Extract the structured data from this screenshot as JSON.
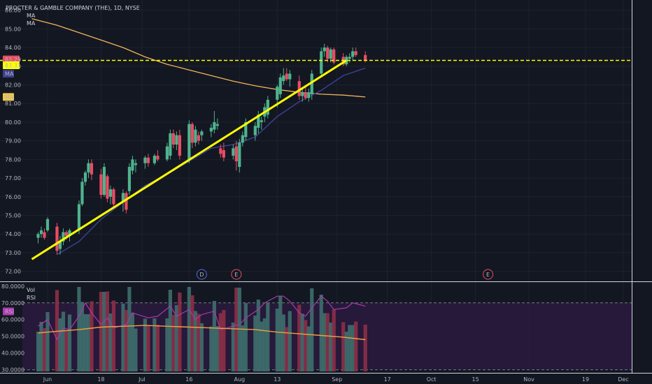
{
  "header": {
    "title": "PROCTER & GAMBLE COMPANY (THE), 1D, NYSE",
    "ma_label_1": "MA",
    "ma_label_2": "MA"
  },
  "price_badges": {
    "last_price": "83.29",
    "last_price_color": "#e84d64",
    "level_price": "83.31",
    "level_color": "#ffff00",
    "ma_fast_tag": "MA",
    "ma_fast_color": "#3c3f8c",
    "ma_slow_tag": "MA",
    "ma_slow_color": "#f0c64a"
  },
  "events": [
    {
      "label": "D",
      "date": "Jul 20",
      "color": "#5b6bd6"
    },
    {
      "label": "E",
      "date": "Jul 31",
      "color": "#e84d64"
    },
    {
      "label": "E",
      "date": "Oct 19",
      "color": "#e84d64"
    }
  ],
  "lower_pane": {
    "vol_label": "Vol",
    "rsi_label": "RSI",
    "rsi_tag": "RSI",
    "rsi_color": "#b03ab0",
    "rsi_ma_color": "#f0a040",
    "overbought": 70,
    "oversold": 30
  },
  "chart_data": {
    "type": "candlestick",
    "title": "PROCTER & GAMBLE COMPANY (THE), 1D, NYSE",
    "x_tick_labels": [
      "Jun",
      "18",
      "Jul",
      "16",
      "Aug",
      "13",
      "Sep",
      "17",
      "Oct",
      "15",
      "Nov",
      "19",
      "Dec"
    ],
    "y_tick_labels": [
      "72.00",
      "73.00",
      "74.00",
      "75.00",
      "76.00",
      "77.00",
      "78.00",
      "79.00",
      "80.00",
      "81.00",
      "82.00",
      "83.00",
      "84.00",
      "85.00",
      "86.00"
    ],
    "ylim": [
      71.5,
      86.4
    ],
    "rsi_tick_labels": [
      "30.0000",
      "40.0000",
      "50.0000",
      "60.0000",
      "70.0000",
      "80.0000"
    ],
    "rsi_ylim": [
      29,
      82
    ],
    "horizontal_level": 83.31,
    "trendline": {
      "start": {
        "date": "May 27",
        "value": 72.65
      },
      "end": {
        "date": "Sep 4",
        "value": 83.31
      }
    },
    "candles": [
      {
        "date": "May 29",
        "o": 73.8,
        "h": 74.1,
        "l": 73.5,
        "c": 74.0
      },
      {
        "date": "May 30",
        "o": 74.0,
        "h": 74.4,
        "l": 73.8,
        "c": 74.2
      },
      {
        "date": "May 31",
        "o": 74.1,
        "h": 74.3,
        "l": 73.7,
        "c": 73.8
      },
      {
        "date": "Jun 1",
        "o": 74.2,
        "h": 74.9,
        "l": 74.1,
        "c": 74.8
      },
      {
        "date": "Jun 4",
        "o": 74.4,
        "h": 74.6,
        "l": 72.9,
        "c": 73.1
      },
      {
        "date": "Jun 5",
        "o": 73.2,
        "h": 73.9,
        "l": 72.9,
        "c": 73.6
      },
      {
        "date": "Jun 6",
        "o": 73.6,
        "h": 74.3,
        "l": 73.4,
        "c": 74.1
      },
      {
        "date": "Jun 7",
        "o": 74.1,
        "h": 74.2,
        "l": 73.7,
        "c": 73.9
      },
      {
        "date": "Jun 8",
        "o": 73.9,
        "h": 74.3,
        "l": 73.6,
        "c": 74.2
      },
      {
        "date": "Jun 11",
        "o": 74.2,
        "h": 75.8,
        "l": 74.0,
        "c": 75.6
      },
      {
        "date": "Jun 12",
        "o": 75.6,
        "h": 77.0,
        "l": 75.5,
        "c": 76.8
      },
      {
        "date": "Jun 13",
        "o": 76.8,
        "h": 77.4,
        "l": 76.6,
        "c": 77.3
      },
      {
        "date": "Jun 14",
        "o": 77.3,
        "h": 78.0,
        "l": 77.0,
        "c": 77.8
      },
      {
        "date": "Jun 15",
        "o": 77.8,
        "h": 78.0,
        "l": 76.9,
        "c": 77.2
      },
      {
        "date": "Jun 18",
        "o": 77.2,
        "h": 77.5,
        "l": 75.9,
        "c": 76.1
      },
      {
        "date": "Jun 19",
        "o": 76.1,
        "h": 77.8,
        "l": 76.0,
        "c": 77.6
      },
      {
        "date": "Jun 20",
        "o": 77.1,
        "h": 77.2,
        "l": 75.7,
        "c": 75.9
      },
      {
        "date": "Jun 21",
        "o": 76.0,
        "h": 76.6,
        "l": 75.6,
        "c": 76.4
      },
      {
        "date": "Jun 22",
        "o": 76.4,
        "h": 76.5,
        "l": 75.4,
        "c": 75.6
      },
      {
        "date": "Jun 25",
        "o": 75.7,
        "h": 76.4,
        "l": 75.2,
        "c": 76.2
      },
      {
        "date": "Jun 26",
        "o": 76.2,
        "h": 76.3,
        "l": 75.1,
        "c": 75.3
      },
      {
        "date": "Jun 27",
        "o": 76.3,
        "h": 77.8,
        "l": 76.1,
        "c": 77.6
      },
      {
        "date": "Jun 28",
        "o": 77.4,
        "h": 78.2,
        "l": 77.2,
        "c": 78.0
      },
      {
        "date": "Jun 29",
        "o": 77.7,
        "h": 78.0,
        "l": 77.3,
        "c": 77.8
      },
      {
        "date": "Jul 2",
        "o": 77.8,
        "h": 78.2,
        "l": 77.5,
        "c": 78.1
      },
      {
        "date": "Jul 3",
        "o": 78.1,
        "h": 78.3,
        "l": 77.6,
        "c": 77.8
      },
      {
        "date": "Jul 5",
        "o": 77.8,
        "h": 78.3,
        "l": 77.7,
        "c": 78.2
      },
      {
        "date": "Jul 6",
        "o": 78.2,
        "h": 78.5,
        "l": 77.9,
        "c": 78.0
      },
      {
        "date": "Jul 9",
        "o": 78.0,
        "h": 78.9,
        "l": 77.9,
        "c": 78.7
      },
      {
        "date": "Jul 10",
        "o": 78.2,
        "h": 79.6,
        "l": 78.0,
        "c": 79.4
      },
      {
        "date": "Jul 11",
        "o": 79.4,
        "h": 79.6,
        "l": 78.6,
        "c": 78.8
      },
      {
        "date": "Jul 12",
        "o": 78.8,
        "h": 79.5,
        "l": 78.5,
        "c": 79.3
      },
      {
        "date": "Jul 13",
        "o": 79.3,
        "h": 79.6,
        "l": 78.0,
        "c": 78.2
      },
      {
        "date": "Jul 16",
        "o": 78.0,
        "h": 80.1,
        "l": 77.8,
        "c": 79.9
      },
      {
        "date": "Jul 17",
        "o": 79.9,
        "h": 80.0,
        "l": 78.6,
        "c": 78.9
      },
      {
        "date": "Jul 18",
        "o": 78.9,
        "h": 79.8,
        "l": 78.7,
        "c": 79.6
      },
      {
        "date": "Jul 19",
        "o": 79.3,
        "h": 79.5,
        "l": 78.8,
        "c": 79.0
      },
      {
        "date": "Jul 20",
        "o": 79.3,
        "h": 79.6,
        "l": 79.0,
        "c": 79.5
      },
      {
        "date": "Jul 23",
        "o": 79.5,
        "h": 79.9,
        "l": 79.2,
        "c": 79.7
      },
      {
        "date": "Jul 24",
        "o": 79.6,
        "h": 80.6,
        "l": 79.4,
        "c": 80.0
      },
      {
        "date": "Jul 25",
        "o": 79.8,
        "h": 80.2,
        "l": 79.6,
        "c": 79.9
      },
      {
        "date": "Jul 26",
        "o": 78.6,
        "h": 78.8,
        "l": 78.1,
        "c": 78.3
      },
      {
        "date": "Jul 27",
        "o": 78.5,
        "h": 78.9,
        "l": 77.9,
        "c": 78.1
      },
      {
        "date": "Jul 30",
        "o": 78.2,
        "h": 78.8,
        "l": 78.0,
        "c": 78.6
      },
      {
        "date": "Jul 31",
        "o": 78.7,
        "h": 79.0,
        "l": 77.4,
        "c": 77.9
      },
      {
        "date": "Aug 1",
        "o": 77.6,
        "h": 79.1,
        "l": 77.3,
        "c": 78.9
      },
      {
        "date": "Aug 2",
        "o": 78.9,
        "h": 79.5,
        "l": 78.7,
        "c": 79.3
      },
      {
        "date": "Aug 3",
        "o": 79.2,
        "h": 80.2,
        "l": 79.0,
        "c": 80.0
      },
      {
        "date": "Aug 6",
        "o": 79.3,
        "h": 80.0,
        "l": 79.0,
        "c": 79.8
      },
      {
        "date": "Aug 7",
        "o": 79.7,
        "h": 80.6,
        "l": 79.4,
        "c": 80.4
      },
      {
        "date": "Aug 8",
        "o": 80.0,
        "h": 80.3,
        "l": 79.6,
        "c": 80.1
      },
      {
        "date": "Aug 9",
        "o": 80.3,
        "h": 81.0,
        "l": 80.0,
        "c": 80.8
      },
      {
        "date": "Aug 10",
        "o": 80.4,
        "h": 81.4,
        "l": 80.2,
        "c": 81.2
      },
      {
        "date": "Aug 13",
        "o": 81.2,
        "h": 82.0,
        "l": 80.8,
        "c": 81.9
      },
      {
        "date": "Aug 14",
        "o": 81.5,
        "h": 82.6,
        "l": 81.3,
        "c": 82.4
      },
      {
        "date": "Aug 15",
        "o": 82.2,
        "h": 82.9,
        "l": 82.0,
        "c": 82.5
      },
      {
        "date": "Aug 16",
        "o": 82.6,
        "h": 82.9,
        "l": 82.2,
        "c": 82.3
      },
      {
        "date": "Aug 17",
        "o": 82.3,
        "h": 82.8,
        "l": 81.9,
        "c": 82.6
      },
      {
        "date": "Aug 20",
        "o": 82.2,
        "h": 82.5,
        "l": 81.2,
        "c": 81.4
      },
      {
        "date": "Aug 21",
        "o": 81.4,
        "h": 81.8,
        "l": 81.1,
        "c": 81.6
      },
      {
        "date": "Aug 22",
        "o": 81.6,
        "h": 81.9,
        "l": 81.2,
        "c": 81.3
      },
      {
        "date": "Aug 23",
        "o": 81.3,
        "h": 81.8,
        "l": 81.1,
        "c": 81.6
      },
      {
        "date": "Aug 24",
        "o": 81.5,
        "h": 82.8,
        "l": 81.2,
        "c": 82.6
      },
      {
        "date": "Aug 27",
        "o": 82.6,
        "h": 84.0,
        "l": 82.4,
        "c": 83.8
      },
      {
        "date": "Aug 28",
        "o": 83.8,
        "h": 84.2,
        "l": 83.5,
        "c": 84.0
      },
      {
        "date": "Aug 29",
        "o": 84.0,
        "h": 84.1,
        "l": 83.2,
        "c": 83.4
      },
      {
        "date": "Aug 30",
        "o": 83.4,
        "h": 84.0,
        "l": 83.2,
        "c": 83.9
      },
      {
        "date": "Aug 31",
        "o": 83.9,
        "h": 84.0,
        "l": 83.1,
        "c": 83.2
      },
      {
        "date": "Sep 3",
        "o": 83.5,
        "h": 83.7,
        "l": 83.0,
        "c": 83.1
      },
      {
        "date": "Sep 4",
        "o": 83.1,
        "h": 83.6,
        "l": 83.0,
        "c": 83.5
      },
      {
        "date": "Sep 5",
        "o": 83.4,
        "h": 83.7,
        "l": 83.2,
        "c": 83.5
      },
      {
        "date": "Sep 6",
        "o": 83.5,
        "h": 84.0,
        "l": 83.3,
        "c": 83.8
      },
      {
        "date": "Sep 7",
        "o": 83.8,
        "h": 84.0,
        "l": 83.5,
        "c": 83.6
      },
      {
        "date": "Sep 10",
        "o": 83.6,
        "h": 83.8,
        "l": 83.2,
        "c": 83.3
      }
    ],
    "ma_fast": {
      "color": "#3a3f8f",
      "values": [
        {
          "date": "Jun 4",
          "v": 72.9
        },
        {
          "date": "Jun 11",
          "v": 73.6
        },
        {
          "date": "Jun 18",
          "v": 74.8
        },
        {
          "date": "Jun 25",
          "v": 75.7
        },
        {
          "date": "Jul 2",
          "v": 76.6
        },
        {
          "date": "Jul 9",
          "v": 77.2
        },
        {
          "date": "Jul 16",
          "v": 77.9
        },
        {
          "date": "Jul 23",
          "v": 78.6
        },
        {
          "date": "Jul 30",
          "v": 78.8
        },
        {
          "date": "Aug 6",
          "v": 79.2
        },
        {
          "date": "Aug 13",
          "v": 80.3
        },
        {
          "date": "Aug 20",
          "v": 81.1
        },
        {
          "date": "Aug 27",
          "v": 81.7
        },
        {
          "date": "Sep 3",
          "v": 82.5
        },
        {
          "date": "Sep 10",
          "v": 82.9
        }
      ]
    },
    "ma_slow": {
      "color": "#f0b55a",
      "values": [
        {
          "date": "May 27",
          "v": 85.55
        },
        {
          "date": "Jun 4",
          "v": 85.2
        },
        {
          "date": "Jun 11",
          "v": 84.8
        },
        {
          "date": "Jun 18",
          "v": 84.4
        },
        {
          "date": "Jun 25",
          "v": 84.0
        },
        {
          "date": "Jul 2",
          "v": 83.5
        },
        {
          "date": "Jul 9",
          "v": 83.1
        },
        {
          "date": "Jul 16",
          "v": 82.8
        },
        {
          "date": "Jul 23",
          "v": 82.5
        },
        {
          "date": "Jul 30",
          "v": 82.2
        },
        {
          "date": "Aug 6",
          "v": 81.95
        },
        {
          "date": "Aug 13",
          "v": 81.75
        },
        {
          "date": "Aug 20",
          "v": 81.6
        },
        {
          "date": "Aug 27",
          "v": 81.5
        },
        {
          "date": "Sep 3",
          "v": 81.45
        },
        {
          "date": "Sep 10",
          "v": 81.35
        }
      ]
    },
    "rsi": {
      "color": "#a93aa9",
      "values": [
        {
          "date": "May 29",
          "v": 56
        },
        {
          "date": "Jun 1",
          "v": 60
        },
        {
          "date": "Jun 4",
          "v": 48
        },
        {
          "date": "Jun 6",
          "v": 55
        },
        {
          "date": "Jun 8",
          "v": 54
        },
        {
          "date": "Jun 11",
          "v": 62
        },
        {
          "date": "Jun 13",
          "v": 70
        },
        {
          "date": "Jun 15",
          "v": 64
        },
        {
          "date": "Jun 18",
          "v": 57
        },
        {
          "date": "Jun 20",
          "v": 61
        },
        {
          "date": "Jun 22",
          "v": 55
        },
        {
          "date": "Jun 26",
          "v": 57
        },
        {
          "date": "Jun 28",
          "v": 64
        },
        {
          "date": "Jul 3",
          "v": 61
        },
        {
          "date": "Jul 6",
          "v": 62
        },
        {
          "date": "Jul 10",
          "v": 68
        },
        {
          "date": "Jul 12",
          "v": 62
        },
        {
          "date": "Jul 16",
          "v": 66
        },
        {
          "date": "Jul 18",
          "v": 60
        },
        {
          "date": "Jul 20",
          "v": 63
        },
        {
          "date": "Jul 24",
          "v": 65
        },
        {
          "date": "Jul 26",
          "v": 54
        },
        {
          "date": "Jul 30",
          "v": 56
        },
        {
          "date": "Aug 1",
          "v": 57
        },
        {
          "date": "Aug 3",
          "v": 61
        },
        {
          "date": "Aug 7",
          "v": 66
        },
        {
          "date": "Aug 9",
          "v": 70
        },
        {
          "date": "Aug 13",
          "v": 74
        },
        {
          "date": "Aug 15",
          "v": 74
        },
        {
          "date": "Aug 17",
          "v": 71
        },
        {
          "date": "Aug 20",
          "v": 64
        },
        {
          "date": "Aug 22",
          "v": 62
        },
        {
          "date": "Aug 24",
          "v": 67
        },
        {
          "date": "Aug 27",
          "v": 74
        },
        {
          "date": "Aug 29",
          "v": 71
        },
        {
          "date": "Aug 31",
          "v": 66
        },
        {
          "date": "Sep 4",
          "v": 67
        },
        {
          "date": "Sep 6",
          "v": 70
        },
        {
          "date": "Sep 10",
          "v": 68
        }
      ]
    },
    "rsi_ma": {
      "color": "#f0a040",
      "values": [
        {
          "date": "May 29",
          "v": 52
        },
        {
          "date": "Jun 4",
          "v": 53
        },
        {
          "date": "Jun 11",
          "v": 54
        },
        {
          "date": "Jun 18",
          "v": 55.5
        },
        {
          "date": "Jun 25",
          "v": 56
        },
        {
          "date": "Jul 2",
          "v": 56.5
        },
        {
          "date": "Jul 9",
          "v": 56
        },
        {
          "date": "Jul 16",
          "v": 55.5
        },
        {
          "date": "Jul 23",
          "v": 55
        },
        {
          "date": "Jul 30",
          "v": 54.5
        },
        {
          "date": "Aug 6",
          "v": 54
        },
        {
          "date": "Aug 13",
          "v": 52.5
        },
        {
          "date": "Aug 20",
          "v": 51.5
        },
        {
          "date": "Aug 27",
          "v": 50.5
        },
        {
          "date": "Sep 3",
          "v": 49.5
        },
        {
          "date": "Sep 10",
          "v": 48
        }
      ]
    },
    "volume_color_up": "#3e6f6d",
    "volume_color_down": "#8e2f47"
  }
}
